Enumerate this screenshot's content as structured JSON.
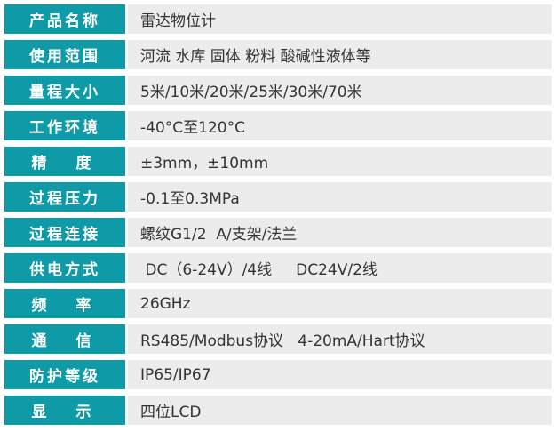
{
  "colors": {
    "label_bg": "#0e9aa7",
    "value_bg": "#ececec"
  },
  "rows": [
    {
      "label": "产品名称",
      "value": "雷达物位计"
    },
    {
      "label": "使用范围",
      "value": "河流 水库 固体 粉料 酸碱性液体等"
    },
    {
      "label": "量程大小",
      "value": "5米/10米/20米/25米/30米/70米"
    },
    {
      "label": "工作环境",
      "value": "-40°C至120°C"
    },
    {
      "label": "精　度",
      "value": "±3mm，±10mm"
    },
    {
      "label": "过程压力",
      "value": "-0.1至0.3MPa"
    },
    {
      "label": "过程连接",
      "value": "螺纹G1/2  A/支架/法兰"
    },
    {
      "label": "供电方式",
      "value": " DC（6-24V）/4线     DC24V/2线"
    },
    {
      "label": "频　率",
      "value": "26GHz"
    },
    {
      "label": "通　信",
      "value": "RS485/Modbus协议   4-20mA/Hart协议"
    },
    {
      "label": "防护等级",
      "value": "IP65/IP67"
    },
    {
      "label": "显　示",
      "value": "四位LCD"
    }
  ]
}
